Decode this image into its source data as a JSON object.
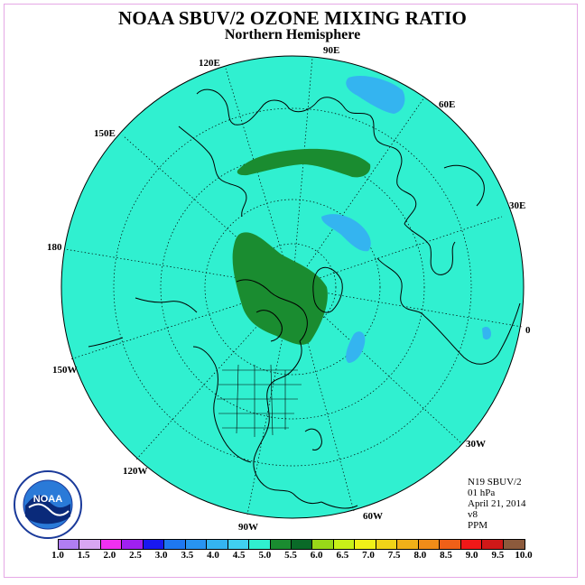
{
  "title": "NOAA SBUV/2 OZONE MIXING RATIO",
  "subtitle": "Northern Hemisphere",
  "longitude_labels": {
    "e120": "120E",
    "e90": "90E",
    "e60": "60E",
    "e150": "150E",
    "e30": "30E",
    "e180": "180",
    "e0": "0",
    "w150": "150W",
    "w30": "30W",
    "w120": "120W",
    "w60": "60W",
    "w90": "90W"
  },
  "info": {
    "satellite": "N19 SBUV/2",
    "level": "01 hPa",
    "date": "April 21, 2014",
    "version": "v8",
    "units": "PPM"
  },
  "logo_text": "NOAA",
  "colorbar": {
    "colors": [
      "#b07ef2",
      "#d8a6f2",
      "#f030f0",
      "#a020f0",
      "#1818f0",
      "#1e78f0",
      "#2894f0",
      "#34b4f0",
      "#40d0f0",
      "#30f0d0",
      "#1a8c30",
      "#0a6a28",
      "#98d818",
      "#c8f018",
      "#f0f018",
      "#f0d418",
      "#f0b018",
      "#f08c18",
      "#f06018",
      "#f01818",
      "#d01818",
      "#8c5a3c"
    ],
    "ticks": [
      "1.0",
      "1.5",
      "2.0",
      "2.5",
      "3.0",
      "3.5",
      "4.0",
      "4.5",
      "5.0",
      "5.5",
      "6.0",
      "6.5",
      "7.0",
      "7.5",
      "8.0",
      "8.5",
      "9.0",
      "9.5",
      "10.0"
    ]
  },
  "map": {
    "background_color": "#30f0d0",
    "high_color": "#1a8c30",
    "low_color": "#34b4f0"
  }
}
